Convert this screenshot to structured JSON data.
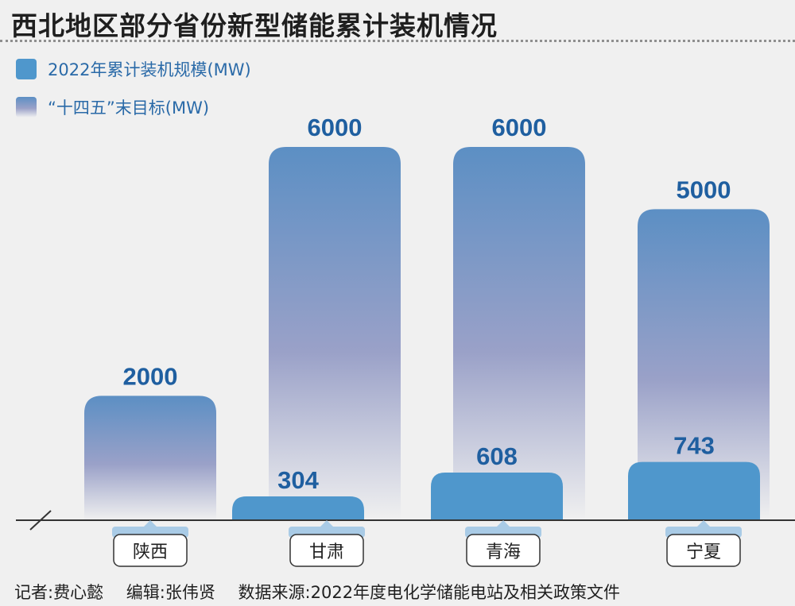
{
  "title": "西北地区部分省份新型储能累计装机情况",
  "legend": {
    "actual": "2022年累计装机规模(MW)",
    "target": "“十四五”末目标(MW)"
  },
  "colors": {
    "actual": "#4f97cc",
    "target_top": "#5c8fc4",
    "target_mid": "#9aa1c8",
    "label": "#1f5fa0"
  },
  "chart_data": {
    "type": "bar",
    "categories": [
      "陕西",
      "甘肃",
      "青海",
      "宁夏"
    ],
    "series": [
      {
        "name": "2022年累计装机规模(MW)",
        "values": [
          null,
          304,
          608,
          743
        ]
      },
      {
        "name": "“十四五”末目标(MW)",
        "values": [
          2000,
          6000,
          6000,
          5000
        ]
      }
    ],
    "ylim": [
      0,
      6000
    ],
    "axis_break": true,
    "legend_position": "top-left"
  },
  "footer": {
    "reporter": "记者:费心懿",
    "editor": "编辑:张伟贤",
    "source": "数据来源:2022年度电化学储能电站及相关政策文件"
  }
}
